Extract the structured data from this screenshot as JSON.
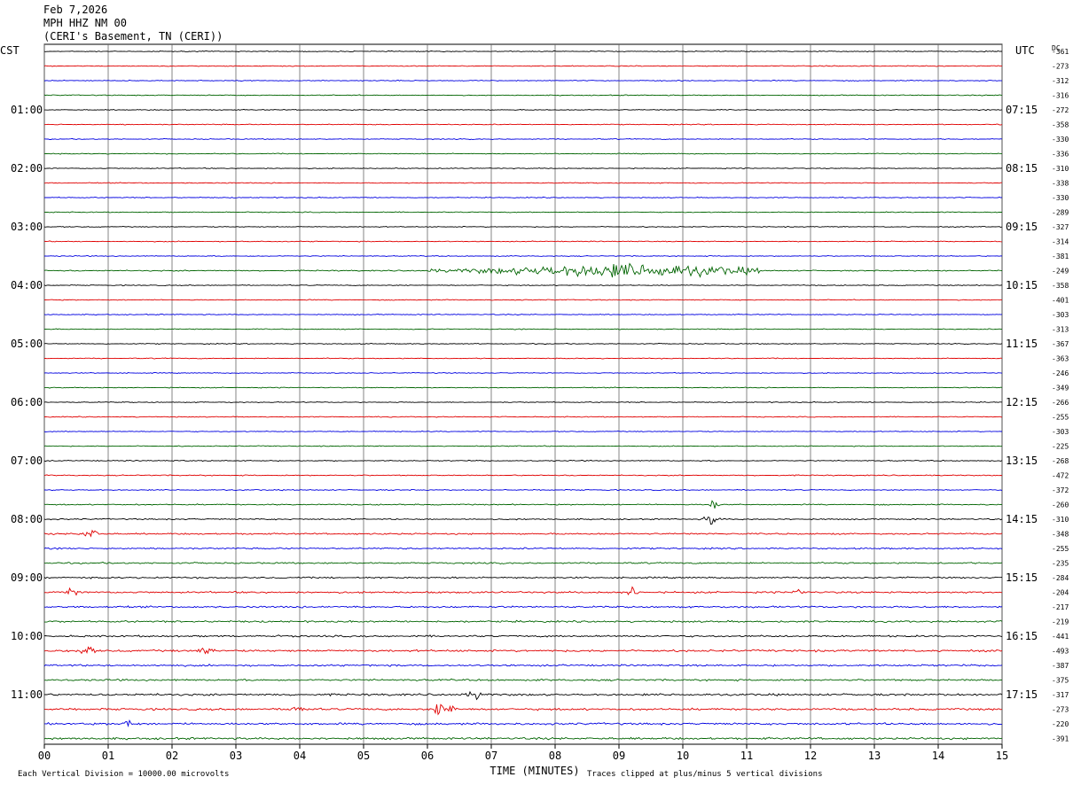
{
  "header": {
    "date": "Feb 7,2026",
    "station": "MPH HHZ NM 00",
    "location": "(CERI's Basement, TN (CERI))"
  },
  "footer": {
    "division_note": "Each Vertical Division = 10000.00 microvolts",
    "clip_note": "Traces clipped at plus/minus 5 vertical divisions"
  },
  "chart_data": {
    "type": "line",
    "title": "",
    "xlabel": "TIME (MINUTES)",
    "left_axis_label": "CST",
    "right_axis_label": "UTC",
    "dc_label": "DC",
    "xlim": [
      0,
      15
    ],
    "x_ticks": [
      "00",
      "01",
      "02",
      "03",
      "04",
      "05",
      "06",
      "07",
      "08",
      "09",
      "10",
      "11",
      "12",
      "13",
      "14",
      "15"
    ],
    "grid": "vertical",
    "trace_colors": [
      "#000000",
      "#e00000",
      "#0000e0",
      "#006400"
    ],
    "rows_per_hour": 4,
    "cst_hour_labels": [
      "01:00",
      "02:00",
      "03:00",
      "04:00",
      "05:00",
      "06:00",
      "07:00",
      "08:00",
      "09:00",
      "10:00",
      "11:00"
    ],
    "utc_hour_labels": [
      "07:15",
      "08:15",
      "09:15",
      "10:15",
      "11:15",
      "12:15",
      "13:15",
      "14:15",
      "15:15",
      "16:15",
      "17:15"
    ],
    "dc_offsets": [
      "-361",
      "-273",
      "-312",
      "-316",
      "-272",
      "-358",
      "-330",
      "-336",
      "-310",
      "-338",
      "-330",
      "-289",
      "-327",
      "-314",
      "-381",
      "-249",
      "-358",
      "-401",
      "-303",
      "-313",
      "-367",
      "-363",
      "-246",
      "-349",
      "-266",
      "-255",
      "-303",
      "-225",
      "-268",
      "-472",
      "-372",
      "-260",
      "-310",
      "-348",
      "-255",
      "-235",
      "-284",
      "-204",
      "-217",
      "-219",
      "-441",
      "-493",
      "-387",
      "-375",
      "-317",
      "-273",
      "-220",
      "-391"
    ],
    "trace_amplitude": [
      0.35,
      0.35,
      0.35,
      0.35,
      0.35,
      0.35,
      0.35,
      0.35,
      0.35,
      0.35,
      0.35,
      0.35,
      0.35,
      0.35,
      0.35,
      0.45,
      0.35,
      0.35,
      0.35,
      0.35,
      0.35,
      0.35,
      0.35,
      0.35,
      0.35,
      0.35,
      0.35,
      0.35,
      0.4,
      0.4,
      0.4,
      0.45,
      0.5,
      0.6,
      0.6,
      0.6,
      0.6,
      0.7,
      0.7,
      0.7,
      0.7,
      0.8,
      0.7,
      0.7,
      0.8,
      0.8,
      0.8,
      0.8
    ],
    "events": [
      {
        "row": 15,
        "start_min": 6.0,
        "end_min": 11.2,
        "peak_min": 9.1,
        "amp": 6
      },
      {
        "row": 31,
        "start_min": 10.4,
        "end_min": 10.6,
        "peak_min": 10.5,
        "amp": 6
      },
      {
        "row": 32,
        "start_min": 10.3,
        "end_min": 10.6,
        "peak_min": 10.45,
        "amp": 6
      },
      {
        "row": 33,
        "start_min": 0.5,
        "end_min": 0.9,
        "peak_min": 0.75,
        "amp": 4
      },
      {
        "row": 37,
        "start_min": 0.3,
        "end_min": 0.6,
        "peak_min": 0.45,
        "amp": 4
      },
      {
        "row": 37,
        "start_min": 9.1,
        "end_min": 9.3,
        "peak_min": 9.2,
        "amp": 6
      },
      {
        "row": 37,
        "start_min": 11.7,
        "end_min": 11.9,
        "peak_min": 11.8,
        "amp": 4
      },
      {
        "row": 41,
        "start_min": 0.5,
        "end_min": 0.8,
        "peak_min": 0.65,
        "amp": 5
      },
      {
        "row": 41,
        "start_min": 2.4,
        "end_min": 2.7,
        "peak_min": 2.55,
        "amp": 4
      },
      {
        "row": 44,
        "start_min": 6.6,
        "end_min": 6.9,
        "peak_min": 6.75,
        "amp": 4
      },
      {
        "row": 45,
        "start_min": 6.1,
        "end_min": 6.5,
        "peak_min": 6.25,
        "amp": 7
      },
      {
        "row": 45,
        "start_min": 3.8,
        "end_min": 4.1,
        "peak_min": 3.95,
        "amp": 3
      },
      {
        "row": 46,
        "start_min": 1.2,
        "end_min": 1.4,
        "peak_min": 1.3,
        "amp": 4
      }
    ]
  }
}
